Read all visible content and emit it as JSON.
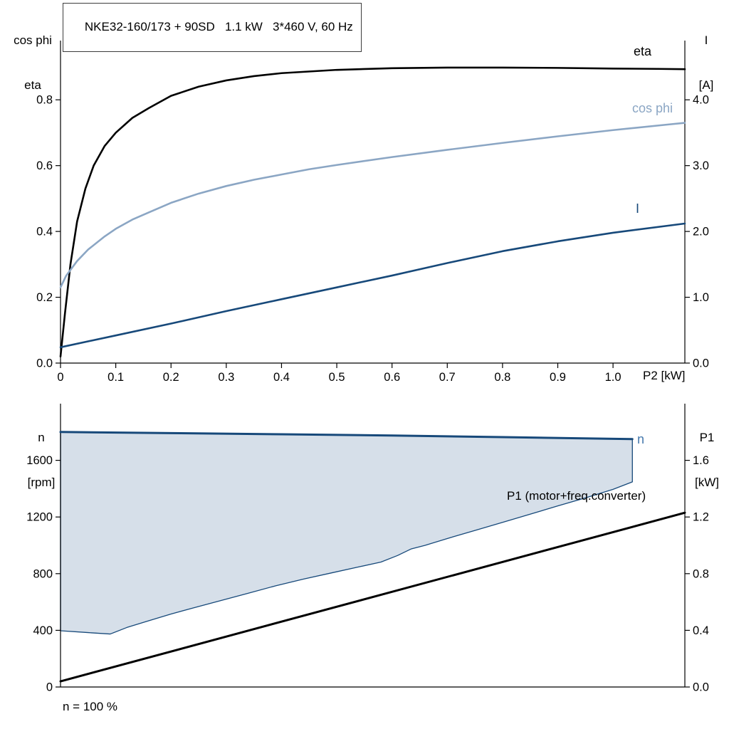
{
  "chart_data": [
    {
      "id": "motor-performance-chart",
      "type": "line",
      "title": "NKE32-160/173 + 90SD   1.1 kW   3*460 V, 60 Hz",
      "xlabel": "P2 [kW]",
      "ylabel_left_lines": [
        "cos phi",
        "eta"
      ],
      "ylabel_right_lines": [
        "I",
        "[A]"
      ],
      "xlim": [
        0,
        1.13
      ],
      "ylim_left": [
        0,
        0.98
      ],
      "ylim_right": [
        0,
        4.9
      ],
      "grid": false,
      "x_ticks": [
        0,
        0.1,
        0.2,
        0.3,
        0.4,
        0.5,
        0.6,
        0.7,
        0.8,
        0.9,
        1.0
      ],
      "x_tick_labels": [
        "0",
        "0.1",
        "0.2",
        "0.3",
        "0.4",
        "0.5",
        "0.6",
        "0.7",
        "0.8",
        "0.9",
        "1.0"
      ],
      "y_ticks_left": [
        0,
        0.2,
        0.4,
        0.6,
        0.8
      ],
      "y_tick_labels_left": [
        "0.0",
        "0.2",
        "0.4",
        "0.6",
        "0.8"
      ],
      "y_ticks_right": [
        0,
        1,
        2,
        3,
        4
      ],
      "y_tick_labels_right": [
        "0.0",
        "1.0",
        "2.0",
        "3.0",
        "4.0"
      ],
      "series": [
        {
          "name": "eta",
          "label": "eta",
          "axis": "left",
          "color": "#000000",
          "label_color": "#000000",
          "width": 2.6,
          "x": [
            0,
            0.008,
            0.018,
            0.03,
            0.045,
            0.06,
            0.08,
            0.1,
            0.13,
            0.16,
            0.2,
            0.25,
            0.3,
            0.35,
            0.4,
            0.5,
            0.6,
            0.7,
            0.8,
            0.9,
            1.0,
            1.08,
            1.13
          ],
          "y": [
            0.02,
            0.15,
            0.3,
            0.43,
            0.53,
            0.6,
            0.66,
            0.7,
            0.745,
            0.775,
            0.812,
            0.84,
            0.859,
            0.872,
            0.881,
            0.891,
            0.896,
            0.898,
            0.898,
            0.897,
            0.895,
            0.894,
            0.893
          ]
        },
        {
          "name": "cos phi",
          "label": "cos phi",
          "axis": "left",
          "color": "#8ba6c4",
          "label_color": "#8ba6c4",
          "width": 2.6,
          "x": [
            0,
            0.01,
            0.03,
            0.05,
            0.08,
            0.1,
            0.13,
            0.16,
            0.2,
            0.25,
            0.3,
            0.35,
            0.4,
            0.45,
            0.5,
            0.6,
            0.7,
            0.8,
            0.9,
            1.0,
            1.1,
            1.13
          ],
          "y": [
            0.23,
            0.265,
            0.31,
            0.345,
            0.385,
            0.408,
            0.436,
            0.458,
            0.487,
            0.515,
            0.538,
            0.557,
            0.573,
            0.589,
            0.602,
            0.626,
            0.648,
            0.669,
            0.689,
            0.708,
            0.725,
            0.73
          ]
        },
        {
          "name": "I",
          "label": "I",
          "axis": "right",
          "color": "#17497a",
          "label_color": "#17497a",
          "width": 2.6,
          "x": [
            0,
            0.1,
            0.2,
            0.3,
            0.4,
            0.5,
            0.6,
            0.7,
            0.8,
            0.9,
            1.0,
            1.13
          ],
          "y": [
            0.24,
            0.42,
            0.6,
            0.79,
            0.97,
            1.15,
            1.33,
            1.52,
            1.7,
            1.85,
            1.98,
            2.12
          ]
        }
      ]
    },
    {
      "id": "speed-power-chart",
      "type": "line",
      "title": "",
      "xlabel": "",
      "ylabel_left_lines": [
        "n",
        "[rpm]"
      ],
      "ylabel_right_lines": [
        "P1",
        "[kW]"
      ],
      "footnote": "n = 100 %",
      "xlim": [
        0,
        1.13
      ],
      "ylim_left": [
        0,
        2000
      ],
      "ylim_right": [
        0,
        2.0
      ],
      "grid": false,
      "x_ticks": [],
      "x_tick_labels": [],
      "y_ticks_left": [
        0,
        400,
        800,
        1200,
        1600
      ],
      "y_tick_labels_left": [
        "0",
        "400",
        "800",
        "1200",
        "1600"
      ],
      "y_ticks_right": [
        0,
        0.4,
        0.8,
        1.2,
        1.6
      ],
      "y_tick_labels_right": [
        "0.0",
        "0.4",
        "0.8",
        "1.2",
        "1.6"
      ],
      "band": {
        "name": "speed-control-range",
        "fill": "#d6dfe9",
        "edge": "#17497a",
        "upper_series": "n",
        "x": [
          0,
          0.05,
          0.09,
          0.12,
          0.16,
          0.2,
          0.24,
          0.29,
          0.34,
          0.39,
          0.44,
          0.49,
          0.54,
          0.58,
          0.61,
          0.635,
          0.66,
          0.7,
          0.75,
          0.8,
          0.85,
          0.9,
          0.95,
          1.0,
          1.035
        ],
        "y_lower": [
          397,
          384,
          374,
          420,
          468,
          515,
          558,
          610,
          662,
          715,
          762,
          805,
          848,
          882,
          928,
          975,
          1000,
          1048,
          1105,
          1162,
          1220,
          1278,
          1335,
          1395,
          1448
        ]
      },
      "series": [
        {
          "name": "n",
          "label": "n",
          "axis": "left",
          "color": "#17497a",
          "label_color": "#4579ad",
          "width": 3,
          "x": [
            0,
            0.2,
            0.4,
            0.6,
            0.8,
            1.0,
            1.035
          ],
          "y": [
            1800,
            1792,
            1784,
            1775,
            1764,
            1752,
            1750
          ]
        },
        {
          "name": "P1",
          "label": "P1 (motor+freq.converter)",
          "axis": "right",
          "color": "#000000",
          "label_color": "#000000",
          "width": 3,
          "x": [
            0,
            1.13
          ],
          "y": [
            0.04,
            1.23
          ]
        }
      ]
    }
  ]
}
